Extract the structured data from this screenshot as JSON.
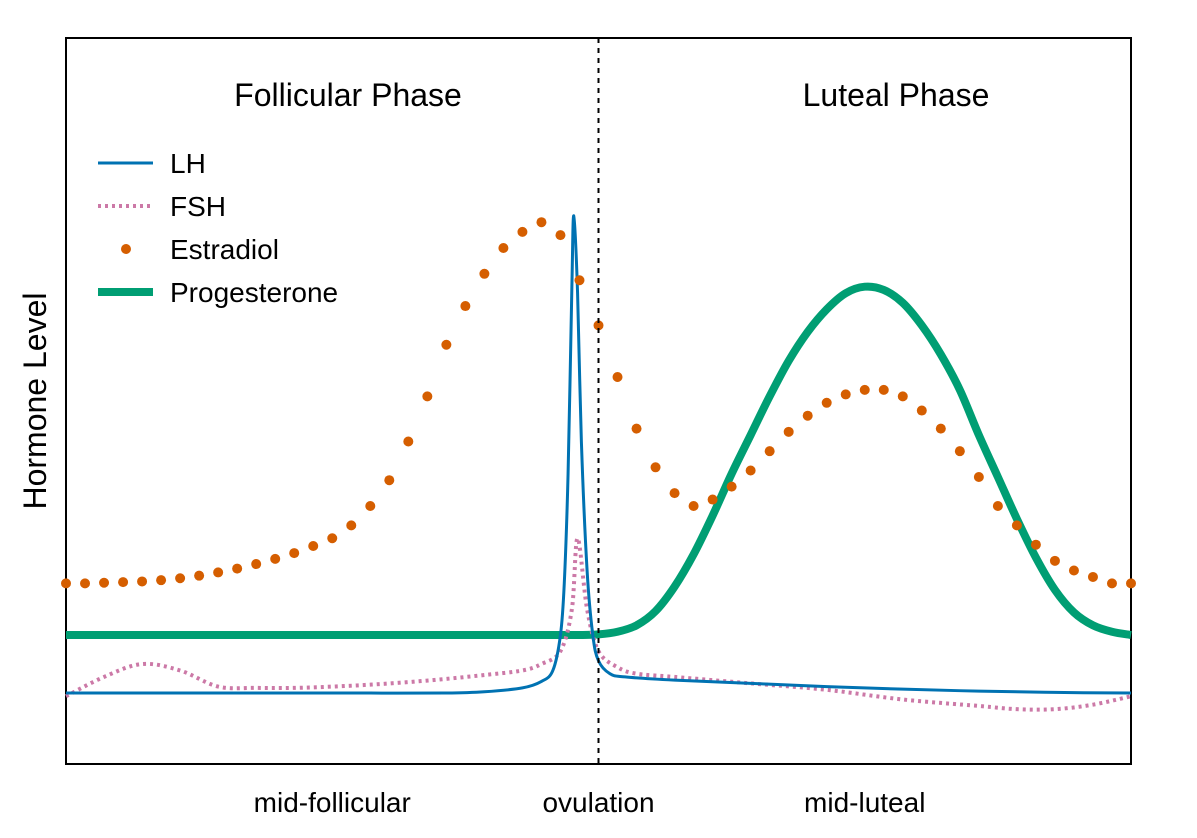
{
  "chart_data": {
    "type": "line",
    "title": "",
    "xlabel": "",
    "ylabel": "Hormone Level",
    "xlim": [
      0,
      28
    ],
    "ylim": [
      0,
      1
    ],
    "grid": false,
    "legend_position": "top-left",
    "phase_labels": [
      "Follicular Phase",
      "Luteal Phase"
    ],
    "ovulation_line_x": 14,
    "x_ticks": [
      {
        "x": 7,
        "label": "mid-follicular"
      },
      {
        "x": 14,
        "label": "ovulation"
      },
      {
        "x": 21,
        "label": "mid-luteal"
      }
    ],
    "series": [
      {
        "name": "LH",
        "color": "#0072B2",
        "style": "solid",
        "x": [
          0,
          2,
          4,
          6,
          8,
          10,
          11,
          12,
          12.5,
          12.8,
          13.0,
          13.1,
          13.2,
          13.3,
          13.35,
          13.45,
          13.55,
          13.7,
          13.85,
          14.0,
          14.3,
          14.7,
          16,
          18,
          20,
          22,
          24,
          26,
          28
        ],
        "values": [
          0.11,
          0.11,
          0.11,
          0.11,
          0.11,
          0.11,
          0.112,
          0.118,
          0.128,
          0.145,
          0.2,
          0.28,
          0.45,
          0.74,
          0.85,
          0.73,
          0.5,
          0.3,
          0.2,
          0.16,
          0.14,
          0.135,
          0.13,
          0.125,
          0.12,
          0.116,
          0.113,
          0.111,
          0.11
        ]
      },
      {
        "name": "FSH",
        "color": "#CC79A7",
        "style": "dotted",
        "x": [
          0,
          1,
          2,
          3,
          4,
          5,
          6,
          7,
          8,
          9,
          10,
          11,
          12,
          12.5,
          13.0,
          13.3,
          13.45,
          13.7,
          14.0,
          14.5,
          15,
          16,
          18,
          20,
          22,
          24,
          25,
          26,
          27,
          28
        ],
        "values": [
          0.105,
          0.135,
          0.155,
          0.145,
          0.12,
          0.118,
          0.118,
          0.12,
          0.123,
          0.127,
          0.132,
          0.138,
          0.145,
          0.155,
          0.175,
          0.24,
          0.35,
          0.24,
          0.175,
          0.15,
          0.14,
          0.135,
          0.125,
          0.115,
          0.1,
          0.09,
          0.085,
          0.085,
          0.092,
          0.105
        ]
      },
      {
        "name": "Estradiol",
        "color": "#D55E00",
        "style": "points",
        "x": [
          0,
          0.5,
          1,
          1.5,
          2,
          2.5,
          3,
          3.5,
          4,
          4.5,
          5,
          5.5,
          6,
          6.5,
          7,
          7.5,
          8,
          8.5,
          9,
          9.5,
          10,
          10.5,
          11,
          11.5,
          12,
          12.5,
          13,
          13.5,
          14,
          14.5,
          15,
          15.5,
          16,
          16.5,
          17,
          17.5,
          18,
          18.5,
          19,
          19.5,
          20,
          20.5,
          21,
          21.5,
          22,
          22.5,
          23,
          23.5,
          24,
          24.5,
          25,
          25.5,
          26,
          26.5,
          27,
          27.5,
          28
        ],
        "values": [
          0.28,
          0.28,
          0.281,
          0.282,
          0.283,
          0.285,
          0.288,
          0.292,
          0.297,
          0.303,
          0.31,
          0.318,
          0.327,
          0.338,
          0.35,
          0.37,
          0.4,
          0.44,
          0.5,
          0.57,
          0.65,
          0.71,
          0.76,
          0.8,
          0.825,
          0.84,
          0.82,
          0.75,
          0.68,
          0.6,
          0.52,
          0.46,
          0.42,
          0.4,
          0.41,
          0.43,
          0.455,
          0.485,
          0.515,
          0.54,
          0.56,
          0.573,
          0.58,
          0.58,
          0.57,
          0.548,
          0.52,
          0.485,
          0.445,
          0.4,
          0.37,
          0.34,
          0.315,
          0.3,
          0.29,
          0.28,
          0.28
        ]
      },
      {
        "name": "Progesterone",
        "color": "#009E73",
        "style": "thick",
        "x": [
          0,
          2,
          4,
          6,
          8,
          10,
          12,
          13,
          13.5,
          14,
          14.5,
          15,
          15.5,
          16,
          16.5,
          17,
          17.5,
          18,
          18.5,
          19,
          19.5,
          20,
          20.5,
          21,
          21.5,
          22,
          22.5,
          23,
          23.5,
          24,
          24.5,
          25,
          25.5,
          26,
          26.5,
          27,
          27.5,
          28
        ],
        "values": [
          0.2,
          0.2,
          0.2,
          0.2,
          0.2,
          0.2,
          0.2,
          0.2,
          0.2,
          0.201,
          0.205,
          0.215,
          0.237,
          0.275,
          0.325,
          0.385,
          0.45,
          0.51,
          0.57,
          0.625,
          0.67,
          0.705,
          0.73,
          0.74,
          0.735,
          0.715,
          0.68,
          0.635,
          0.58,
          0.51,
          0.445,
          0.38,
          0.32,
          0.27,
          0.235,
          0.215,
          0.205,
          0.2
        ]
      }
    ]
  }
}
